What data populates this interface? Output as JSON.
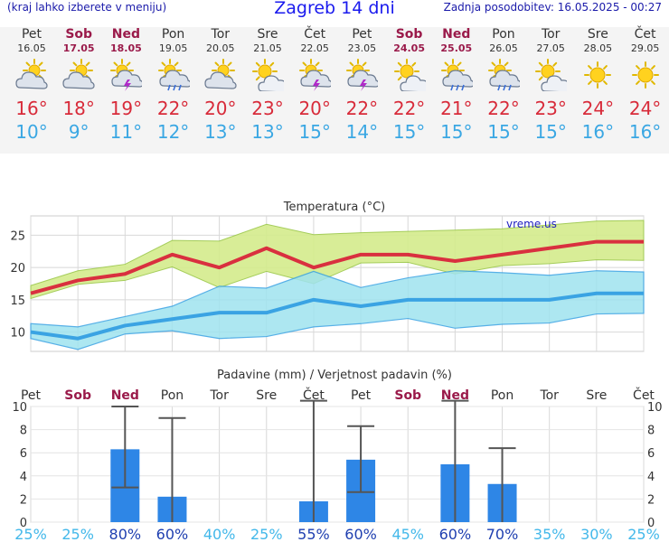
{
  "header": {
    "left_note": "(kraj lahko izberete v meniju)",
    "title": "Zagreb 14 dni",
    "last_update": "Zadnja posodobitev: 16.05.2025 - 00:27"
  },
  "days": [
    {
      "name": "Pet",
      "date": "16.05",
      "weekend": false,
      "icon": "cloud-sun-icon",
      "max": "16°",
      "min": "10°"
    },
    {
      "name": "Sob",
      "date": "17.05",
      "weekend": true,
      "icon": "cloud-sun-icon",
      "max": "18°",
      "min": "9°"
    },
    {
      "name": "Ned",
      "date": "18.05",
      "weekend": true,
      "icon": "sun-storm-icon",
      "max": "19°",
      "min": "11°"
    },
    {
      "name": "Pon",
      "date": "19.05",
      "weekend": false,
      "icon": "sun-rain-icon",
      "max": "22°",
      "min": "12°"
    },
    {
      "name": "Tor",
      "date": "20.05",
      "weekend": false,
      "icon": "cloud-sun-icon",
      "max": "20°",
      "min": "13°"
    },
    {
      "name": "Sre",
      "date": "21.05",
      "weekend": false,
      "icon": "sun-cloud-icon",
      "max": "23°",
      "min": "13°"
    },
    {
      "name": "Čet",
      "date": "22.05",
      "weekend": false,
      "icon": "sun-storm-icon",
      "max": "20°",
      "min": "15°"
    },
    {
      "name": "Pet",
      "date": "23.05",
      "weekend": false,
      "icon": "sun-storm-icon",
      "max": "22°",
      "min": "14°"
    },
    {
      "name": "Sob",
      "date": "24.05",
      "weekend": true,
      "icon": "sun-cloud-icon",
      "max": "22°",
      "min": "15°"
    },
    {
      "name": "Ned",
      "date": "25.05",
      "weekend": true,
      "icon": "sun-rain-icon",
      "max": "21°",
      "min": "15°"
    },
    {
      "name": "Pon",
      "date": "26.05",
      "weekend": false,
      "icon": "sun-rain-icon",
      "max": "22°",
      "min": "15°"
    },
    {
      "name": "Tor",
      "date": "27.05",
      "weekend": false,
      "icon": "sun-cloud-icon",
      "max": "23°",
      "min": "15°"
    },
    {
      "name": "Sre",
      "date": "28.05",
      "weekend": false,
      "icon": "sun-icon",
      "max": "24°",
      "min": "16°"
    },
    {
      "name": "Čet",
      "date": "29.05",
      "weekend": false,
      "icon": "sun-icon",
      "max": "24°",
      "min": "16°"
    }
  ],
  "colors": {
    "max": "#d82b3a",
    "min": "#3aa7e3",
    "weekend": "#9a1a4a",
    "band_warm": "#d4ec8c",
    "band_cool": "#9fe3ef",
    "bar": "#2e86e6",
    "line_max": "#d9303f",
    "line_min": "#3aa3e3"
  },
  "chart_data": [
    {
      "type": "line",
      "title": "Temperatura (°C)",
      "watermark": "vreme.us",
      "ylim": [
        7,
        28
      ],
      "yticks": [
        10,
        15,
        20,
        25
      ],
      "series": [
        {
          "values": [
            16,
            18,
            19,
            22,
            20,
            23,
            20,
            22,
            22,
            21,
            22,
            23,
            24,
            24
          ]
        },
        {
          "values": [
            10,
            9,
            11,
            12,
            13,
            13,
            15,
            14,
            15,
            15,
            15,
            15,
            16,
            16
          ]
        }
      ],
      "max_band_upper": [
        17.2,
        19.5,
        20.5,
        24.2,
        24.1,
        26.7,
        25.1,
        25.4,
        25.6,
        25.8,
        26.0,
        26.6,
        27.2,
        27.3
      ],
      "max_band_lower": [
        15.2,
        17.4,
        18.0,
        20.1,
        16.9,
        19.4,
        17.5,
        20.7,
        20.8,
        19.0,
        20.3,
        20.6,
        21.2,
        21.1
      ],
      "min_band_upper": [
        11.3,
        10.8,
        12.4,
        14.0,
        17.1,
        16.8,
        19.4,
        16.9,
        18.4,
        19.5,
        19.2,
        18.8,
        19.5,
        19.3
      ],
      "min_band_lower": [
        9.0,
        7.3,
        9.7,
        10.2,
        9.0,
        9.3,
        10.8,
        11.3,
        12.1,
        10.6,
        11.2,
        11.4,
        12.8,
        12.9
      ]
    },
    {
      "type": "bar",
      "title": "Padavine (mm) / Verjetnost padavin (%)",
      "ylim": [
        0,
        10
      ],
      "yticks": [
        0,
        2,
        4,
        6,
        8,
        10
      ],
      "values": [
        0,
        0,
        6.3,
        2.2,
        0,
        0,
        1.8,
        5.4,
        0,
        5.0,
        3.3,
        0,
        0,
        0
      ],
      "err_low": [
        0,
        0,
        3.0,
        0,
        0,
        0,
        0,
        2.6,
        0,
        0,
        0,
        0,
        0,
        0
      ],
      "err_high": [
        0,
        0,
        10.0,
        9.0,
        0,
        0,
        10.5,
        8.3,
        0,
        10.5,
        6.4,
        0,
        0,
        0
      ],
      "probability": [
        "25%",
        "25%",
        "80%",
        "60%",
        "40%",
        "25%",
        "55%",
        "60%",
        "45%",
        "60%",
        "70%",
        "35%",
        "30%",
        "25%"
      ],
      "probability_dark": [
        false,
        false,
        true,
        true,
        false,
        false,
        true,
        true,
        false,
        true,
        true,
        false,
        false,
        false
      ]
    }
  ]
}
